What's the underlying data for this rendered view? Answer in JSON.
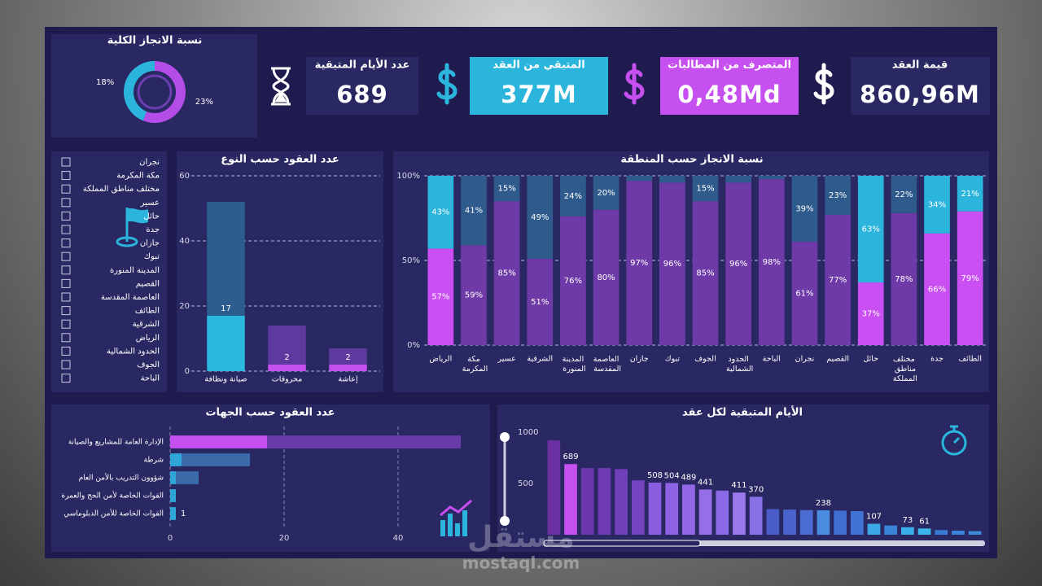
{
  "kpis": [
    {
      "label": "عدد الأيام المتبقية",
      "value": "689"
    },
    {
      "label": "المتبقي من العقد",
      "value": "377M"
    },
    {
      "label": "المتصرف من المطالبات",
      "value": "0,48Md"
    },
    {
      "label": "قيمة العقد",
      "value": "860,96M"
    }
  ],
  "slicer": {
    "items": [
      "نجران",
      "مكة المكرمة",
      "مختلف مناطق المملكة",
      "عسير",
      "حائل",
      "جدة",
      "جازان",
      "تبوك",
      "المدينة المنورة",
      "القصيم",
      "العاصمة المقدسة",
      "الطائف",
      "الشرقية",
      "الرياض",
      "الحدود الشمالية",
      "الجوف",
      "الباحة"
    ]
  },
  "watermark": {
    "logo": "مستقل",
    "url": "mostaql.com"
  },
  "chart_data": [
    {
      "type": "pie",
      "title": "نسبة الانجاز الكلية",
      "donut": true,
      "values": [
        18,
        23
      ],
      "value_labels": [
        "18%",
        "23%"
      ],
      "colors": [
        "#2bb5dc",
        "#b44de8"
      ]
    },
    {
      "type": "bar",
      "title": "عدد العقود حسب النوع",
      "categories": [
        "صيانة ونظافة",
        "محروقات",
        "إعاشة"
      ],
      "series": [
        {
          "values": [
            17,
            2,
            2
          ],
          "value_labels": [
            "17",
            "2",
            "2"
          ],
          "colors": [
            "#2bb8de",
            "#c64ff0",
            "#c64ff0"
          ]
        },
        {
          "values": [
            35,
            12,
            5
          ],
          "colors": [
            "#2d5d8f",
            "#5e3a9e",
            "#5e3a9e"
          ]
        }
      ],
      "stacked": true,
      "ylim": [
        0,
        60
      ],
      "yticks": [
        0,
        20,
        40,
        60
      ],
      "grid": true
    },
    {
      "type": "bar",
      "title": "نسبة الانجاز حسب المنطقة",
      "categories": [
        "الرياض",
        "مكة المكرمة",
        "عسير",
        "الشرقية",
        "المدينة المنورة",
        "العاصمة المقدسة",
        "جازان",
        "تبوك",
        "الجوف",
        "الحدود الشمالية",
        "الباحة",
        "نجران",
        "القصيم",
        "حائل",
        "مختلف مناطق المملكة",
        "جدة",
        "الطائف"
      ],
      "series": [
        {
          "values": [
            57,
            59,
            85,
            51,
            76,
            80,
            97,
            96,
            85,
            96,
            98,
            61,
            77,
            37,
            78,
            66,
            79
          ],
          "value_labels": [
            "57%",
            "59%",
            "85%",
            "51%",
            "76%",
            "80%",
            "97%",
            "96%",
            "85%",
            "96%",
            "98%",
            "61%",
            "77%",
            "37%",
            "78%",
            "66%",
            "79%"
          ],
          "colors": [
            "#c94ff2",
            "#6e3aa8",
            "#6e3aa8",
            "#6e3aa8",
            "#6e3aa8",
            "#6e3aa8",
            "#6e3aa8",
            "#6e3aa8",
            "#6e3aa8",
            "#6e3aa8",
            "#6e3aa8",
            "#6e3aa8",
            "#6e3aa8",
            "#c94ff2",
            "#6e3aa8",
            "#c94ff2",
            "#c94ff2"
          ]
        },
        {
          "values": [
            43,
            41,
            15,
            49,
            24,
            20,
            3,
            4,
            15,
            4,
            2,
            39,
            23,
            63,
            22,
            34,
            21
          ],
          "value_labels": [
            "43%",
            "41%",
            "15%",
            "49%",
            "24%",
            "20%",
            null,
            null,
            "15%",
            null,
            null,
            "39%",
            "23%",
            "63%",
            "22%",
            "34%",
            "21%"
          ],
          "colors": [
            "#2bb5dc",
            "#2e5a8c",
            "#2e5a8c",
            "#2e5a8c",
            "#2e5a8c",
            "#2e5a8c",
            "#2e5a8c",
            "#2e5a8c",
            "#2e5a8c",
            "#2e5a8c",
            "#2e5a8c",
            "#2e5a8c",
            "#2e5a8c",
            "#2bb5dc",
            "#2e5a8c",
            "#2bb5dc",
            "#2bb5dc"
          ]
        }
      ],
      "stacked": true,
      "ylim": [
        0,
        100
      ],
      "yticks": [
        {
          "value": 0,
          "label": "0%"
        },
        {
          "value": 50,
          "label": "50%"
        },
        {
          "value": 100,
          "label": "100%"
        }
      ],
      "grid": true
    },
    {
      "type": "bar",
      "orientation": "horizontal",
      "title": "عدد العقود حسب الجهات",
      "categories": [
        "الإدارة العامة للمشاريع والصيانة",
        "شرطة",
        "شؤوون التدريب بالأمن العام",
        "القوات الخاصة لأمن الحج والعمرة",
        "القوات الخاصة للأمن الدبلوماسي"
      ],
      "series": [
        {
          "values": [
            17,
            2,
            1,
            1,
            1
          ],
          "value_labels": [
            "17",
            "2",
            "1",
            null,
            "1"
          ],
          "colors": [
            "#c64ff0",
            "#2fa5d8",
            "#2fa5d8",
            "#2fa5d8",
            "#2fa5d8"
          ]
        },
        {
          "values": [
            34,
            12,
            4,
            0,
            0
          ],
          "colors": [
            "#6a3aa8",
            "#3a6aa8",
            "#3a6aa8",
            "#3a6aa8",
            "#3a6aa8"
          ]
        }
      ],
      "stacked": true,
      "xlim": [
        0,
        55
      ],
      "xticks": [
        0,
        20,
        40
      ],
      "grid": true
    },
    {
      "type": "bar",
      "title": "الأيام المتبقية لكل عقد",
      "values": [
        920,
        689,
        650,
        650,
        640,
        530,
        508,
        504,
        489,
        441,
        430,
        411,
        370,
        250,
        245,
        240,
        238,
        235,
        230,
        107,
        90,
        73,
        61,
        45,
        40,
        35
      ],
      "value_labels": [
        null,
        "689",
        null,
        null,
        null,
        null,
        "508",
        "504",
        "489",
        "441",
        null,
        "411",
        "370",
        null,
        null,
        null,
        "238",
        null,
        null,
        "107",
        null,
        "73",
        "61",
        null,
        null,
        null
      ],
      "colors": [
        "#6a2fa0",
        "#c64ff0",
        "#6c37ad",
        "#6e3bb3",
        "#7040b8",
        "#7444c0",
        "#8a5ce0",
        "#8e62e4",
        "#9268e6",
        "#966ee8",
        "#8a6ae6",
        "#9a78ec",
        "#8a70e6",
        "#4a5cc8",
        "#4a64cc",
        "#4a6cd0",
        "#4a8ce0",
        "#3f6ed0",
        "#3f74d4",
        "#3aa8e6",
        "#3a84d8",
        "#3ab0ea",
        "#3ab8ee",
        "#3a7cd4",
        "#3a84d8",
        "#3a8ad8"
      ],
      "ylim": [
        0,
        1000
      ],
      "yticks": [
        500,
        1000
      ],
      "grid": false
    }
  ]
}
